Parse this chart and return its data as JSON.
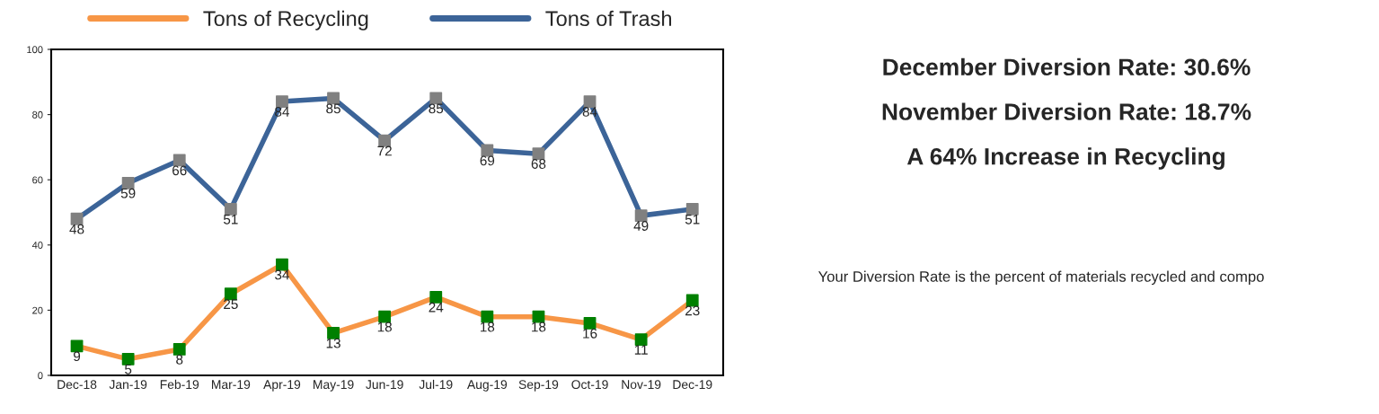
{
  "chart_data": [
    {
      "type": "line",
      "categories": [
        "Dec-18",
        "Jan-19",
        "Feb-19",
        "Mar-19",
        "Apr-19",
        "May-19",
        "Jun-19",
        "Jul-19",
        "Aug-19",
        "Sep-19",
        "Oct-19",
        "Nov-19",
        "Dec-19"
      ],
      "series": [
        {
          "name": "Tons of Recycling",
          "color": "#f79646",
          "colors": [
            "#008000",
            "#008000",
            "#008000",
            "#008000",
            "#008000",
            "#008000",
            "#008000",
            "#008000",
            "#008000",
            "#008000",
            "#008000",
            "#008000",
            "#008000"
          ],
          "values": [
            9,
            5,
            8,
            25,
            34,
            13,
            18,
            24,
            18,
            18,
            16,
            11,
            23
          ]
        },
        {
          "name": "Tons of Trash",
          "color": "#3c6498",
          "colors": [
            "#808080",
            "#808080",
            "#808080",
            "#808080",
            "#808080",
            "#808080",
            "#808080",
            "#808080",
            "#808080",
            "#808080",
            "#808080",
            "#808080",
            "#808080"
          ],
          "values": [
            48,
            59,
            66,
            51,
            84,
            85,
            72,
            85,
            69,
            68,
            84,
            49,
            51
          ]
        }
      ],
      "ylim": [
        0,
        100
      ],
      "yticks": [
        0,
        20,
        40,
        60,
        80,
        100
      ],
      "data_labels": true,
      "marker": "square",
      "line_style": "solid",
      "legend": "top",
      "grid": false
    },
    {
      "type": "other",
      "annotations": [
        "December Diversion Rate: 30.6%",
        "November Diversion Rate: 18.7%",
        "A 64% Increase in Recycling",
        "Your Diversion Rate is the percent of materials recycled and compo"
      ]
    }
  ]
}
